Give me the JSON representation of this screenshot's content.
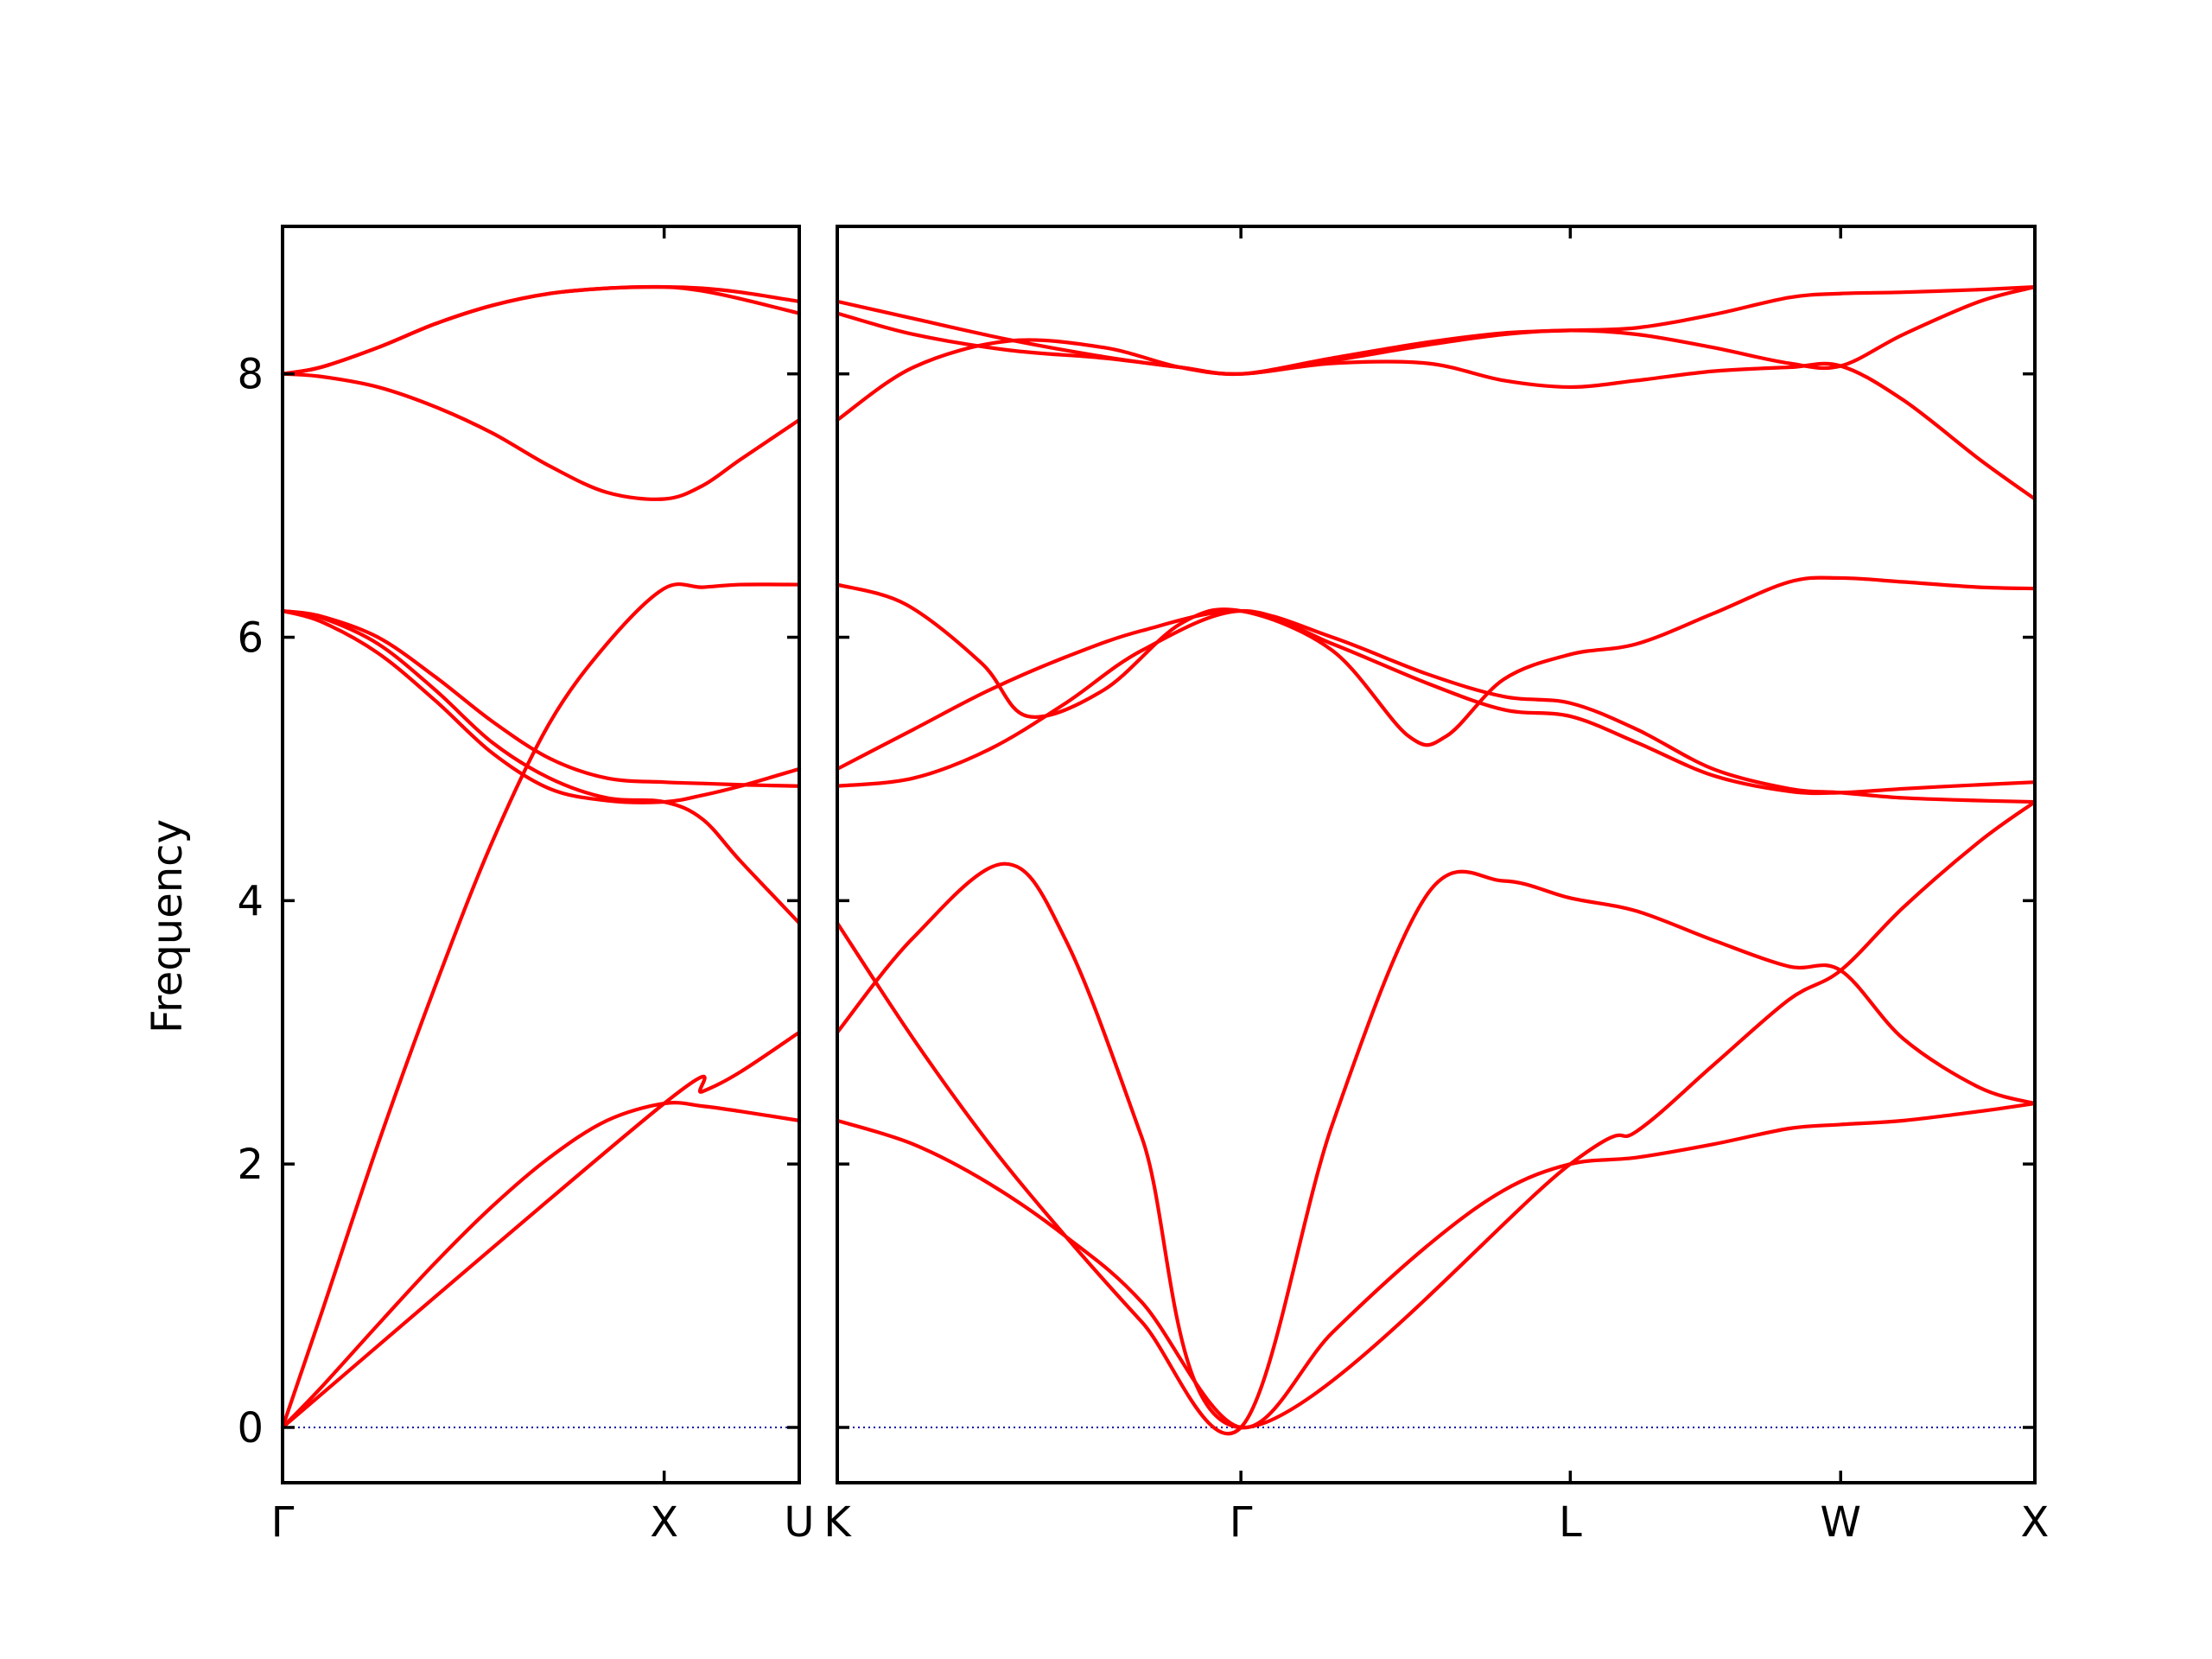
{
  "chart_data": {
    "type": "line",
    "title": "",
    "xlabel": "",
    "ylabel": "Frequency",
    "ylim": [
      -0.42,
      9.12
    ],
    "yticks": [
      0,
      2,
      4,
      6,
      8
    ],
    "grid": false,
    "legend": "none",
    "colors": {
      "band": "#ff0000",
      "zero_line": "#0000aa",
      "axes": "#000000"
    },
    "panels": [
      {
        "id": "left",
        "xlim": [
          0,
          1.354
        ],
        "ticks": [
          {
            "x": 0,
            "label": "Γ"
          },
          {
            "x": 1.0,
            "label": "X"
          },
          {
            "x": 1.354,
            "label": "U"
          }
        ],
        "bands": [
          {
            "x": [
              0,
              0.1,
              0.25,
              0.4,
              0.55,
              0.7,
              0.85,
              1.0,
              1.1,
              1.2,
              1.354
            ],
            "y": [
              0,
              0.3,
              0.78,
              1.25,
              1.68,
              2.05,
              2.33,
              2.46,
              2.44,
              2.4,
              2.33
            ]
          },
          {
            "x": [
              0,
              0.1,
              0.25,
              0.4,
              0.55,
              0.7,
              0.85,
              1.0,
              1.1,
              1.2,
              1.354
            ],
            "y": [
              0,
              0.85,
              2.15,
              3.35,
              4.45,
              5.35,
              5.95,
              6.37,
              6.38,
              6.4,
              6.4
            ]
          },
          {
            "x": [
              0,
              1.0,
              1.1,
              1.2,
              1.354
            ],
            "y": [
              0,
              2.46,
              2.55,
              2.7,
              3.0
            ]
          },
          {
            "x": [
              0,
              0.1,
              0.25,
              0.4,
              0.55,
              0.7,
              0.85,
              1.0,
              1.1,
              1.2,
              1.354
            ],
            "y": [
              6.2,
              6.15,
              5.95,
              5.6,
              5.2,
              4.93,
              4.78,
              4.75,
              4.62,
              4.3,
              3.83
            ]
          },
          {
            "x": [
              0,
              0.1,
              0.25,
              0.4,
              0.55,
              0.7,
              0.85,
              1.0,
              1.1,
              1.2,
              1.354
            ],
            "y": [
              6.2,
              6.12,
              5.88,
              5.52,
              5.12,
              4.85,
              4.76,
              4.75,
              4.8,
              4.87,
              5.0
            ]
          },
          {
            "x": [
              0,
              0.1,
              0.25,
              0.4,
              0.55,
              0.7,
              0.85,
              1.0,
              1.1,
              1.2,
              1.354
            ],
            "y": [
              6.2,
              6.16,
              6.0,
              5.7,
              5.36,
              5.08,
              4.93,
              4.9,
              4.89,
              4.88,
              4.87
            ]
          },
          {
            "x": [
              0,
              0.1,
              0.25,
              0.4,
              0.55,
              0.7,
              0.85,
              1.0,
              1.1,
              1.2,
              1.354
            ],
            "y": [
              8.0,
              7.98,
              7.9,
              7.75,
              7.55,
              7.3,
              7.1,
              7.05,
              7.15,
              7.35,
              7.65
            ]
          },
          {
            "x": [
              0,
              0.1,
              0.25,
              0.4,
              0.55,
              0.7,
              0.85,
              1.0,
              1.1,
              1.2,
              1.354
            ],
            "y": [
              8.0,
              8.05,
              8.2,
              8.38,
              8.52,
              8.61,
              8.65,
              8.66,
              8.63,
              8.57,
              8.46
            ]
          },
          {
            "x": [
              0,
              0.1,
              0.25,
              0.4,
              0.55,
              0.7,
              0.85,
              1.0,
              1.1,
              1.2,
              1.354
            ],
            "y": [
              8.0,
              8.05,
              8.2,
              8.38,
              8.52,
              8.61,
              8.65,
              8.66,
              8.65,
              8.62,
              8.55
            ]
          }
        ]
      },
      {
        "id": "right",
        "xlim": [
          0,
          3.145
        ],
        "ticks": [
          {
            "x": 0,
            "label": "K"
          },
          {
            "x": 1.06,
            "label": "Γ"
          },
          {
            "x": 1.925,
            "label": "L"
          },
          {
            "x": 2.635,
            "label": "W"
          },
          {
            "x": 3.145,
            "label": "X"
          }
        ],
        "bands": [
          {
            "x": [
              0,
              0.2,
              0.4,
              0.6,
              0.8,
              1.06,
              1.3,
              1.55,
              1.75,
              1.925,
              2.1,
              2.3,
              2.5,
              2.635,
              2.8,
              3.0,
              3.145
            ],
            "y": [
              2.33,
              2.15,
              1.85,
              1.45,
              0.95,
              0,
              0.72,
              1.38,
              1.8,
              2.0,
              2.05,
              2.15,
              2.27,
              2.3,
              2.33,
              2.4,
              2.46
            ]
          },
          {
            "x": [
              0,
              0.2,
              0.4,
              0.6,
              0.8,
              1.06,
              1.3,
              1.55,
              1.75,
              1.925,
              2.1,
              2.3,
              2.5,
              2.635,
              2.8,
              3.0,
              3.145
            ],
            "y": [
              3.83,
              2.95,
              2.15,
              1.45,
              0.8,
              0,
              2.3,
              4.05,
              4.15,
              4.02,
              3.92,
              3.7,
              3.5,
              3.47,
              2.95,
              2.58,
              2.46
            ]
          },
          {
            "x": [
              0,
              0.2,
              0.44,
              0.6,
              0.8,
              1.06,
              1.925,
              2.1,
              2.3,
              2.5,
              2.635,
              2.8,
              3.0,
              3.145
            ],
            "y": [
              3.0,
              3.72,
              4.28,
              3.7,
              2.2,
              0,
              2.0,
              2.25,
              2.75,
              3.25,
              3.47,
              3.95,
              4.45,
              4.75
            ]
          },
          {
            "x": [
              0,
              0.2,
              0.4,
              0.6,
              0.8,
              1.06,
              1.3,
              1.55,
              1.75,
              1.925,
              2.1,
              2.3,
              2.5,
              2.635,
              2.8,
              3.0,
              3.145
            ],
            "y": [
              4.87,
              4.93,
              5.15,
              5.5,
              5.9,
              6.2,
              5.95,
              5.65,
              5.45,
              5.4,
              5.2,
              4.95,
              4.83,
              4.82,
              4.85,
              4.88,
              4.9
            ]
          },
          {
            "x": [
              0,
              0.2,
              0.4,
              0.6,
              0.8,
              1.06,
              1.3,
              1.55,
              1.75,
              1.925,
              2.1,
              2.3,
              2.5,
              2.635,
              2.8,
              3.0,
              3.145
            ],
            "y": [
              5.0,
              5.3,
              5.6,
              5.85,
              6.05,
              6.2,
              6.0,
              5.72,
              5.55,
              5.5,
              5.3,
              5.0,
              4.85,
              4.82,
              4.78,
              4.76,
              4.75
            ]
          },
          {
            "x": [
              0,
              0.18,
              0.38,
              0.5,
              0.7,
              0.9,
              1.06,
              1.3,
              1.5,
              1.6,
              1.75,
              1.925,
              2.1,
              2.3,
              2.5,
              2.635,
              2.8,
              3.0,
              3.145
            ],
            "y": [
              6.4,
              6.25,
              5.8,
              5.4,
              5.6,
              6.1,
              6.2,
              5.9,
              5.25,
              5.25,
              5.68,
              5.87,
              5.95,
              6.18,
              6.42,
              6.45,
              6.42,
              6.38,
              6.37
            ]
          },
          {
            "x": [
              0,
              0.2,
              0.45,
              0.7,
              0.9,
              1.06,
              1.3,
              1.55,
              1.75,
              1.925,
              2.1,
              2.3,
              2.5,
              2.635,
              2.8,
              3.0,
              3.145
            ],
            "y": [
              7.65,
              8.05,
              8.25,
              8.2,
              8.05,
              8.0,
              8.08,
              8.08,
              7.95,
              7.9,
              7.95,
              8.02,
              8.05,
              8.06,
              7.8,
              7.35,
              7.05
            ]
          },
          {
            "x": [
              0,
              0.2,
              0.45,
              0.7,
              0.9,
              1.06,
              1.3,
              1.55,
              1.75,
              1.925,
              2.1,
              2.3,
              2.5,
              2.635,
              2.8,
              3.0,
              3.145
            ],
            "y": [
              8.46,
              8.3,
              8.18,
              8.12,
              8.05,
              8.0,
              8.1,
              8.22,
              8.3,
              8.33,
              8.3,
              8.2,
              8.08,
              8.06,
              8.3,
              8.55,
              8.66
            ]
          },
          {
            "x": [
              0,
              0.2,
              0.45,
              0.7,
              0.9,
              1.06,
              1.3,
              1.55,
              1.75,
              1.925,
              2.1,
              2.3,
              2.5,
              2.635,
              2.8,
              3.0,
              3.145
            ],
            "y": [
              8.55,
              8.42,
              8.26,
              8.13,
              8.05,
              8.0,
              8.12,
              8.24,
              8.31,
              8.33,
              8.35,
              8.45,
              8.58,
              8.61,
              8.62,
              8.64,
              8.66
            ]
          }
        ]
      }
    ]
  }
}
